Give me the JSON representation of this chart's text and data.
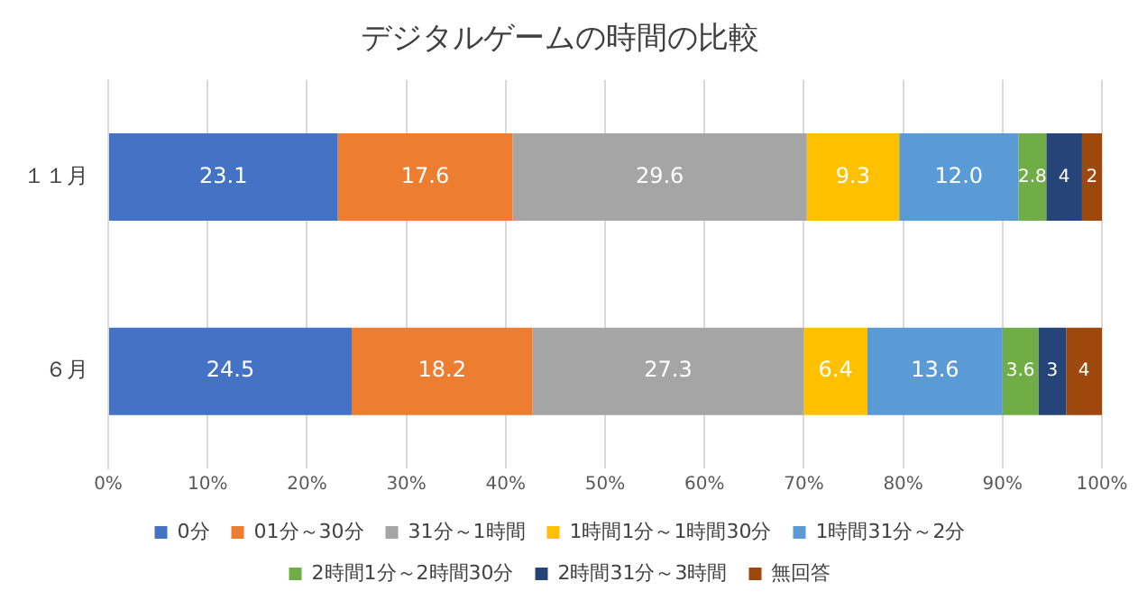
{
  "chart_data": {
    "type": "bar",
    "orientation": "horizontal",
    "stacked": true,
    "title": "デジタルゲームの時間の比較",
    "categories": [
      "１１月",
      "６月"
    ],
    "series": [
      {
        "name": "0分",
        "color": "#4472c4",
        "values": [
          23.1,
          24.5
        ],
        "value_labels": [
          "23.1",
          "24.5"
        ]
      },
      {
        "name": "01分～30分",
        "color": "#ed7d31",
        "values": [
          17.6,
          18.2
        ],
        "value_labels": [
          "17.6",
          "18.2"
        ]
      },
      {
        "name": "31分～1時間",
        "color": "#a5a5a5",
        "values": [
          29.6,
          27.3
        ],
        "value_labels": [
          "29.6",
          "27.3"
        ]
      },
      {
        "name": "1時間1分～1時間30分",
        "color": "#ffc000",
        "values": [
          9.3,
          6.4
        ],
        "value_labels": [
          "9.3",
          "6.4"
        ]
      },
      {
        "name": "1時間31分～2分",
        "color": "#5b9bd5",
        "values": [
          12.0,
          13.6
        ],
        "value_labels": [
          "12.0",
          "13.6"
        ]
      },
      {
        "name": "2時間1分～2時間30分",
        "color": "#70ad47",
        "values": [
          2.8,
          3.6
        ],
        "value_labels": [
          "2.8",
          "3.6"
        ]
      },
      {
        "name": "2時間31分～3時間",
        "color": "#264478",
        "values": [
          3.6,
          2.8
        ],
        "value_labels": [
          "4",
          "3"
        ]
      },
      {
        "name": "無回答",
        "color": "#9e480e",
        "values": [
          2.0,
          3.6
        ],
        "value_labels": [
          "2",
          "4"
        ]
      }
    ],
    "xlim": [
      0,
      100
    ],
    "xticks": [
      {
        "value": 0,
        "label": "0%"
      },
      {
        "value": 10,
        "label": "10%"
      },
      {
        "value": 20,
        "label": "20%"
      },
      {
        "value": 30,
        "label": "30%"
      },
      {
        "value": 40,
        "label": "40%"
      },
      {
        "value": 50,
        "label": "50%"
      },
      {
        "value": 60,
        "label": "60%"
      },
      {
        "value": 70,
        "label": "70%"
      },
      {
        "value": 80,
        "label": "80%"
      },
      {
        "value": 90,
        "label": "90%"
      },
      {
        "value": 100,
        "label": "100%"
      }
    ],
    "grid": "x",
    "legend": "bottom"
  }
}
